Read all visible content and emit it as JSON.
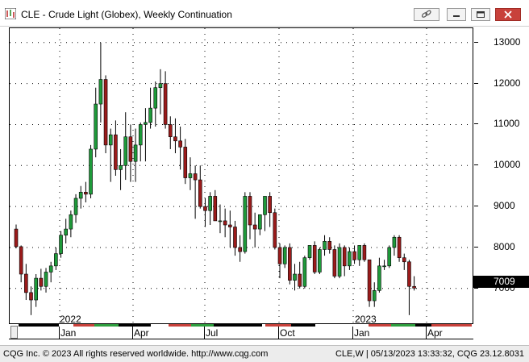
{
  "window": {
    "title": "CLE - Crude Light (Globex), Weekly Continuation",
    "accent": "#c8413b"
  },
  "chart_data": {
    "type": "candlestick",
    "symbol": "CLE",
    "interval": "Weekly",
    "y_ticks": [
      7000,
      8000,
      9000,
      10000,
      11000,
      12000,
      13000
    ],
    "ylim": [
      6150,
      13350
    ],
    "last_price": "7009",
    "year_labels": [
      "2022",
      "2023"
    ],
    "month_labels": [
      "Jan",
      "Apr",
      "Jul",
      "Oct",
      "Jan",
      "Apr"
    ],
    "up_color": "#1e9a3a",
    "down_color": "#9b1b1b",
    "candles": [
      [
        8450,
        8560,
        7980,
        8020
      ],
      [
        8020,
        8050,
        7150,
        7350
      ],
      [
        7350,
        7600,
        6720,
        6900
      ],
      [
        6900,
        7050,
        6350,
        6720
      ],
      [
        6720,
        7350,
        6550,
        7250
      ],
      [
        7250,
        7480,
        6950,
        7050
      ],
      [
        7050,
        7500,
        6900,
        7400
      ],
      [
        7400,
        7650,
        7150,
        7550
      ],
      [
        7550,
        8000,
        7450,
        7850
      ],
      [
        7850,
        8400,
        7750,
        8300
      ],
      [
        8300,
        8700,
        8100,
        8450
      ],
      [
        8450,
        8900,
        8250,
        8800
      ],
      [
        8800,
        9300,
        8600,
        9200
      ],
      [
        9200,
        9500,
        8950,
        9350
      ],
      [
        9350,
        9600,
        9100,
        9300
      ],
      [
        9300,
        10500,
        9200,
        10400
      ],
      [
        10400,
        11900,
        10200,
        11500
      ],
      [
        11500,
        13000,
        11050,
        12100
      ],
      [
        12100,
        12200,
        10300,
        10500
      ],
      [
        10500,
        10900,
        9600,
        10750
      ],
      [
        10750,
        11100,
        9750,
        9900
      ],
      [
        9900,
        10400,
        9400,
        10000
      ],
      [
        10000,
        11300,
        9650,
        10700
      ],
      [
        10700,
        11000,
        9600,
        10100
      ],
      [
        10100,
        10900,
        9600,
        10500
      ],
      [
        10500,
        11050,
        10100,
        11000
      ],
      [
        11000,
        11400,
        10100,
        11050
      ],
      [
        11050,
        11900,
        10900,
        11400
      ],
      [
        11400,
        12050,
        10950,
        11900
      ],
      [
        11900,
        12350,
        11250,
        12000
      ],
      [
        12000,
        12300,
        10900,
        11000
      ],
      [
        11000,
        11200,
        10400,
        10700
      ],
      [
        10700,
        11150,
        10300,
        10600
      ],
      [
        10600,
        10950,
        9900,
        10450
      ],
      [
        10450,
        10650,
        9550,
        9700
      ],
      [
        9700,
        10200,
        9400,
        9800
      ],
      [
        9800,
        10000,
        8700,
        9650
      ],
      [
        9650,
        10000,
        8950,
        9000
      ],
      [
        9000,
        9200,
        8500,
        8900
      ],
      [
        8900,
        9350,
        8550,
        9250
      ],
      [
        9250,
        9400,
        8700,
        8650
      ],
      [
        8650,
        9050,
        8350,
        8650
      ],
      [
        8650,
        8950,
        8250,
        8550
      ],
      [
        8550,
        8900,
        8000,
        8500
      ],
      [
        8500,
        8650,
        7800,
        8000
      ],
      [
        8000,
        8300,
        7650,
        7900
      ],
      [
        7900,
        9350,
        7850,
        9250
      ],
      [
        9250,
        9350,
        8200,
        8550
      ],
      [
        8550,
        8850,
        8000,
        8450
      ],
      [
        8450,
        8800,
        8300,
        8800
      ],
      [
        8800,
        9250,
        8400,
        9250
      ],
      [
        9250,
        9350,
        8500,
        8850
      ],
      [
        8850,
        8950,
        7950,
        8000
      ],
      [
        8000,
        8100,
        7250,
        7600
      ],
      [
        7600,
        8050,
        7500,
        8000
      ],
      [
        8000,
        8100,
        7100,
        7200
      ],
      [
        7200,
        7600,
        6950,
        7350
      ],
      [
        7350,
        7650,
        7000,
        7050
      ],
      [
        7050,
        7800,
        7000,
        7750
      ],
      [
        7750,
        8050,
        7700,
        8050
      ],
      [
        8050,
        8150,
        7350,
        7400
      ],
      [
        7400,
        8000,
        7350,
        7950
      ],
      [
        7950,
        8300,
        7800,
        8150
      ],
      [
        8150,
        8250,
        7850,
        7950
      ],
      [
        7950,
        8050,
        7250,
        7300
      ],
      [
        7300,
        8100,
        7250,
        8000
      ],
      [
        8000,
        8050,
        7300,
        7550
      ],
      [
        7550,
        8000,
        7450,
        7900
      ],
      [
        7900,
        8050,
        7600,
        7700
      ],
      [
        7700,
        8050,
        7550,
        8050
      ],
      [
        8050,
        8100,
        7650,
        7700
      ],
      [
        7700,
        7700,
        6550,
        6700
      ],
      [
        6700,
        7150,
        6550,
        6950
      ],
      [
        6950,
        7750,
        6900,
        7550
      ],
      [
        7550,
        7700,
        7450,
        7550
      ],
      [
        7550,
        8050,
        7500,
        8000
      ],
      [
        8000,
        8300,
        7800,
        8250
      ],
      [
        8250,
        8300,
        7650,
        7750
      ],
      [
        7750,
        7850,
        7450,
        7650
      ],
      [
        7650,
        7700,
        6350,
        7050
      ],
      [
        7050,
        7300,
        6950,
        7009
      ]
    ]
  },
  "footer": {
    "copyright": "CQG Inc. © 2023 All rights reserved worldwide. http://www.cqg.com",
    "status": "CLE,W | 05/13/2023 13:33:32, CQG 23.12.8031"
  }
}
